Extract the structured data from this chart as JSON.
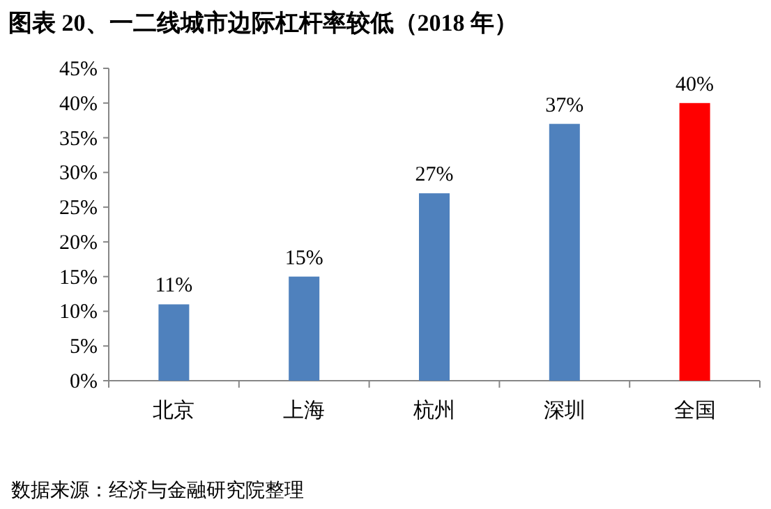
{
  "chart_data": {
    "type": "bar",
    "title": "图表 20、一二线城市边际杠杆率较低（2018 年）",
    "categories": [
      "北京",
      "上海",
      "杭州",
      "深圳",
      "全国"
    ],
    "values": [
      11,
      15,
      27,
      37,
      40
    ],
    "colors": [
      "#4f81bd",
      "#4f81bd",
      "#4f81bd",
      "#4f81bd",
      "#ff0000"
    ],
    "value_labels": [
      "11%",
      "15%",
      "27%",
      "37%",
      "40%"
    ],
    "ylim": [
      0,
      45
    ],
    "yticks": [
      {
        "value": 0,
        "label": "0%"
      },
      {
        "value": 5,
        "label": "5%"
      },
      {
        "value": 10,
        "label": "10%"
      },
      {
        "value": 15,
        "label": "15%"
      },
      {
        "value": 20,
        "label": "20%"
      },
      {
        "value": 25,
        "label": "25%"
      },
      {
        "value": 30,
        "label": "30%"
      },
      {
        "value": 35,
        "label": "35%"
      },
      {
        "value": 40,
        "label": "40%"
      },
      {
        "value": 45,
        "label": "45%"
      }
    ],
    "grid": false,
    "annotations": [
      "数据来源：经济与金融研究院整理"
    ]
  }
}
